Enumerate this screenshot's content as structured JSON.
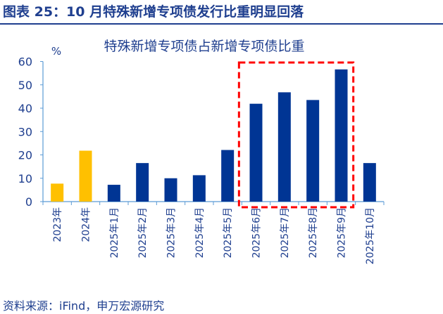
{
  "figure_title": "图表 25：10 月特殊新增专项债发行比重明显回落",
  "source": "资料来源：iFind，申万宏源研究",
  "colors": {
    "primary": "#003594",
    "highlight": "#ffc000",
    "annotation_box": "#ff0000",
    "axis": "#5b9bd5",
    "text": "#1f3f8f"
  },
  "chart_data": {
    "type": "bar",
    "title": "特殊新增专项债占新增专项债比重",
    "ylabel": "%",
    "ylim": [
      0,
      60
    ],
    "yticks": [
      0,
      10,
      20,
      30,
      40,
      50,
      60
    ],
    "grid": false,
    "categories": [
      "2023年",
      "2024年",
      "2025年1月",
      "2025年2月",
      "2025年3月",
      "2025年4月",
      "2025年5月",
      "2025年6月",
      "2025年7月",
      "2025年8月",
      "2025年9月",
      "2025年10月"
    ],
    "values": [
      7.7,
      21.8,
      7.2,
      16.5,
      10.0,
      11.3,
      22.1,
      41.9,
      46.8,
      43.5,
      56.6,
      16.5
    ],
    "bar_colors": [
      "#ffc000",
      "#ffc000",
      "#003594",
      "#003594",
      "#003594",
      "#003594",
      "#003594",
      "#003594",
      "#003594",
      "#003594",
      "#003594",
      "#003594"
    ],
    "annotation": {
      "type": "dashed-box",
      "categories": [
        "2025年6月",
        "2025年7月",
        "2025年8月",
        "2025年9月"
      ]
    }
  }
}
